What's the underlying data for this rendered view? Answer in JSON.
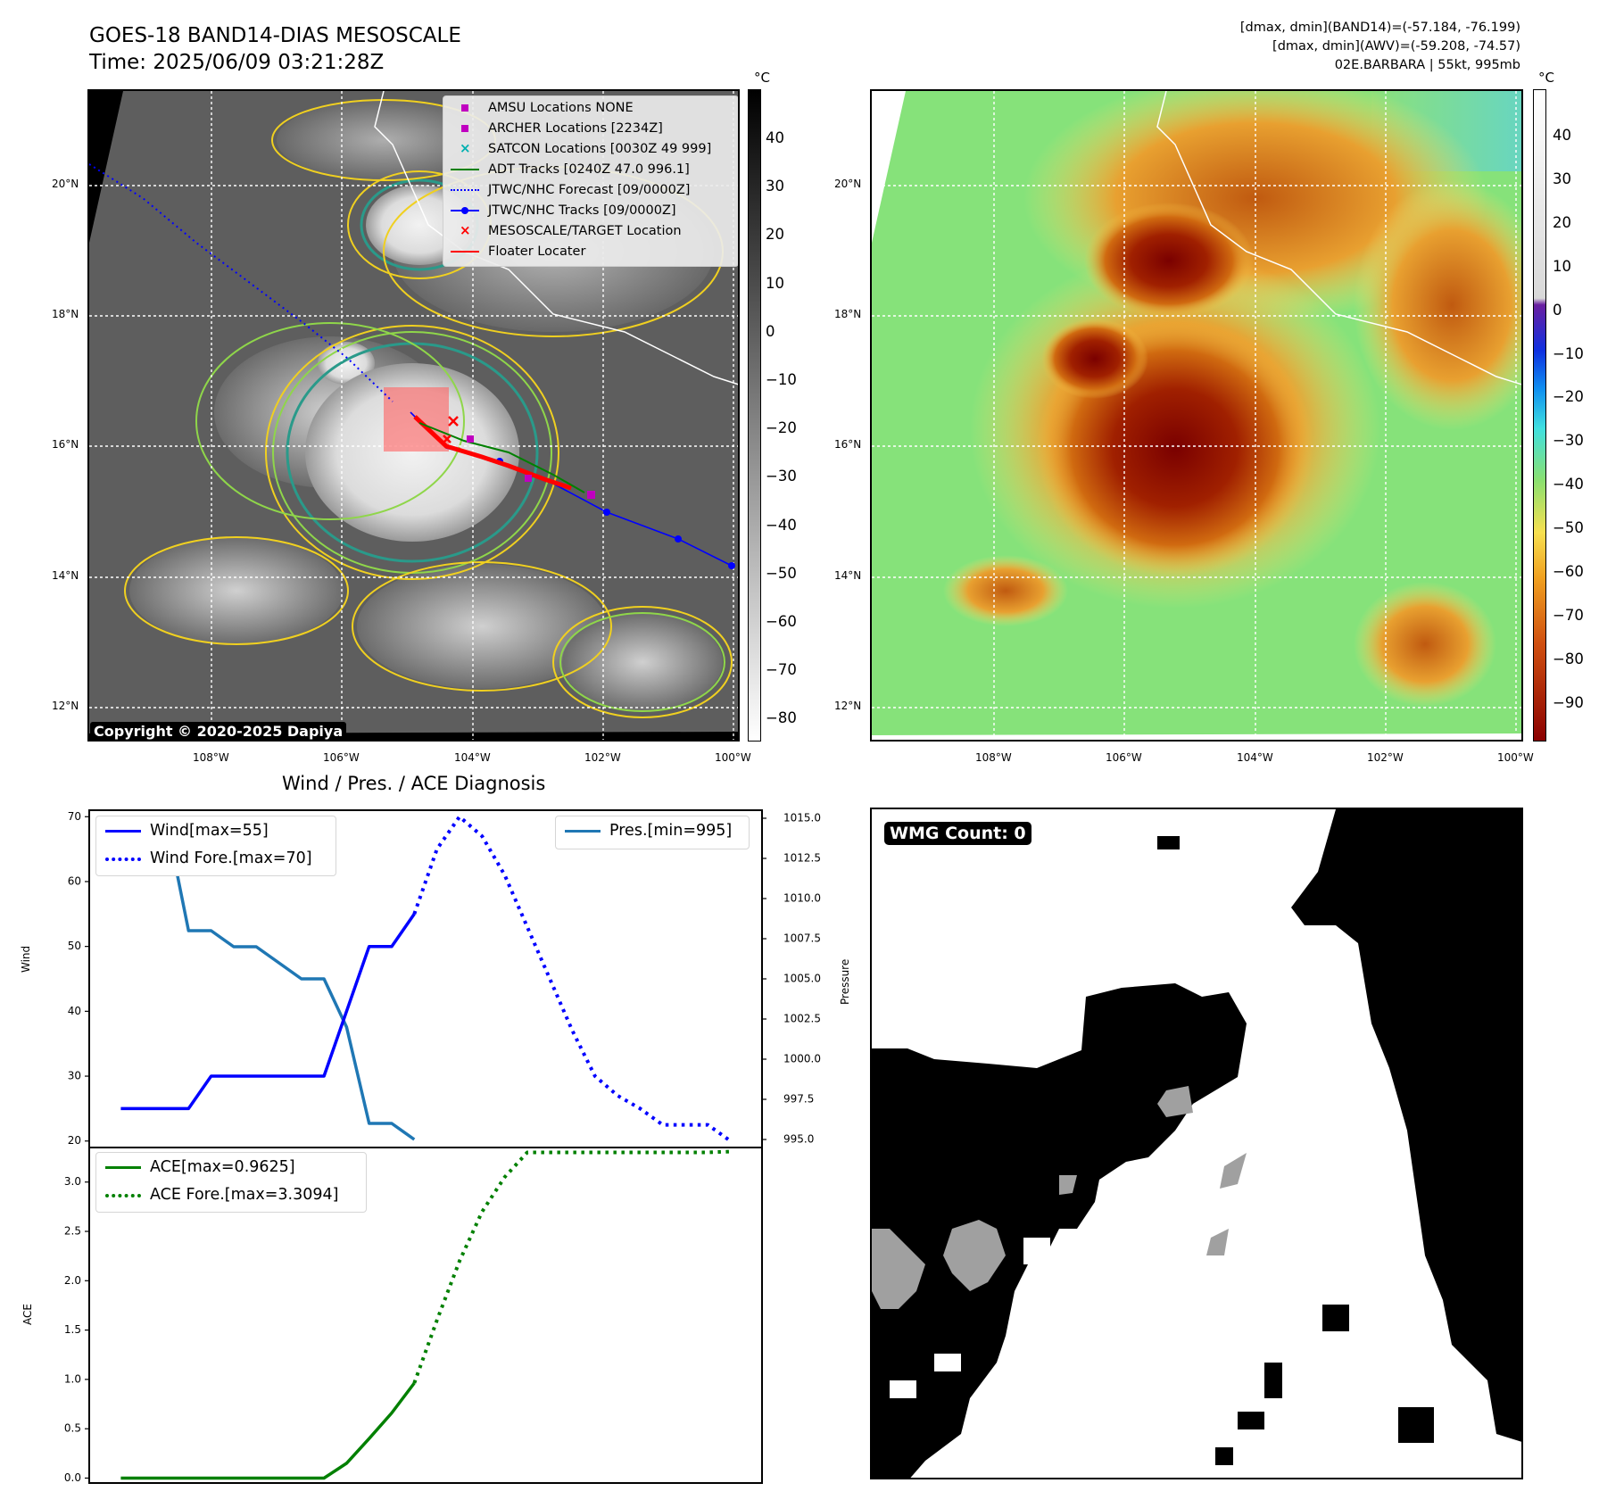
{
  "header": {
    "title_line1": "GOES-18 BAND14-DIAS MESOSCALE",
    "title_line2": "Time: 2025/06/09 03:21:28Z",
    "info_line1": "[dmax, dmin](BAND14)=(-57.184, -76.199)",
    "info_line2": "[dmax, dmin](AWV)=(-59.208, -74.57)",
    "info_line3": "02E.BARBARA | 55kt, 995mb"
  },
  "map_left": {
    "colorbar_unit": "°C",
    "colorbar_ticks": [
      "40",
      "30",
      "20",
      "10",
      "0",
      "−10",
      "−20",
      "−30",
      "−40",
      "−50",
      "−60",
      "−70",
      "−80"
    ],
    "lat_labels": [
      "20°N",
      "18°N",
      "16°N",
      "14°N",
      "12°N"
    ],
    "lon_labels": [
      "108°W",
      "106°W",
      "104°W",
      "102°W",
      "100°W"
    ],
    "copyright": "Copyright © 2020-2025 Dapiya",
    "legend": [
      {
        "label": "AMSU Locations NONE",
        "symbol": "square",
        "color": "#c000c0"
      },
      {
        "label": "ARCHER Locations [2234Z]",
        "symbol": "square",
        "color": "#c000c0"
      },
      {
        "label": "SATCON Locations [0030Z 49 999]",
        "symbol": "x",
        "color": "#00b0b0"
      },
      {
        "label": "ADT Tracks [0240Z 47.0 996.1]",
        "symbol": "line",
        "color": "#008000"
      },
      {
        "label": "JTWC/NHC Forecast [09/0000Z]",
        "symbol": "dotted",
        "color": "#0000ff"
      },
      {
        "label": "JTWC/NHC Tracks [09/0000Z]",
        "symbol": "line-dot",
        "color": "#0000ff"
      },
      {
        "label": "MESOSCALE/TARGET Location",
        "symbol": "x",
        "color": "#ff0000"
      },
      {
        "label": "Floater Locater",
        "symbol": "line",
        "color": "#ff0000"
      }
    ]
  },
  "map_right": {
    "colorbar_unit": "°C",
    "colorbar_ticks": [
      "40",
      "30",
      "20",
      "10",
      "0",
      "−10",
      "−20",
      "−30",
      "−40",
      "−50",
      "−60",
      "−70",
      "−80",
      "−90"
    ],
    "lat_labels": [
      "20°N",
      "18°N",
      "16°N",
      "14°N",
      "12°N"
    ],
    "lon_labels": [
      "108°W",
      "106°W",
      "104°W",
      "102°W",
      "100°W"
    ]
  },
  "wmg": {
    "label": "WMG Count: 0"
  },
  "chart_data": [
    {
      "type": "line",
      "title": "Wind / Pres. / ACE Diagnosis",
      "ylabel": "Wind",
      "y2label": "Pressure",
      "ylim": [
        19,
        71
      ],
      "y2lim": [
        994.5,
        1015.5
      ],
      "yticks": [
        "70",
        "60",
        "50",
        "40",
        "30",
        "20"
      ],
      "y2ticks": [
        "1015.0",
        "1012.5",
        "1010.0",
        "1007.5",
        "1005.0",
        "1002.5",
        "1000.0",
        "997.5",
        "995.0"
      ],
      "series": [
        {
          "name": "Wind[max=55]",
          "style": "solid",
          "color": "#0000ff",
          "x": [
            0,
            1,
            2,
            3,
            4,
            5,
            6,
            7,
            8,
            9,
            10,
            11,
            12,
            13
          ],
          "values": [
            25,
            25,
            25,
            25,
            30,
            30,
            30,
            30,
            30,
            30,
            40,
            50,
            50,
            55
          ]
        },
        {
          "name": "Wind Fore.[max=70]",
          "style": "dotted",
          "color": "#0000ff",
          "x": [
            13,
            14,
            15,
            16,
            17,
            18,
            19,
            20,
            21,
            22,
            23,
            24,
            25,
            26,
            27
          ],
          "values": [
            55,
            65,
            70,
            67,
            61,
            53,
            45,
            37,
            30,
            27,
            25,
            22.5,
            22.5,
            22.5,
            20
          ]
        },
        {
          "name": "Pres.[min=995]",
          "style": "solid",
          "color": "#1f77b4",
          "axis": "right",
          "x": [
            0,
            1,
            2,
            3,
            4,
            5,
            6,
            7,
            8,
            9,
            10,
            11,
            12,
            13
          ],
          "values": [
            1015,
            1015,
            1015,
            1008,
            1008,
            1007,
            1007,
            1006,
            1005,
            1005,
            1002,
            996,
            996,
            995
          ]
        }
      ]
    },
    {
      "type": "line",
      "ylabel": "ACE",
      "ylim": [
        -0.05,
        3.35
      ],
      "yticks": [
        "3.0",
        "2.5",
        "2.0",
        "1.5",
        "1.0",
        "0.5",
        "0.0"
      ],
      "series": [
        {
          "name": "ACE[max=0.9625]",
          "style": "solid",
          "color": "#008000",
          "x": [
            0,
            1,
            2,
            3,
            4,
            5,
            6,
            7,
            8,
            9,
            10,
            11,
            12,
            13
          ],
          "values": [
            0,
            0,
            0,
            0,
            0,
            0,
            0,
            0,
            0,
            0,
            0.15,
            0.4,
            0.66,
            0.9625
          ]
        },
        {
          "name": "ACE Fore.[max=3.3094]",
          "style": "dotted",
          "color": "#008000",
          "x": [
            13,
            14,
            15,
            16,
            17,
            18,
            19,
            20,
            21,
            22,
            23,
            24,
            25,
            26,
            27
          ],
          "values": [
            0.9625,
            1.6,
            2.2,
            2.7,
            3.05,
            3.3,
            3.3,
            3.3,
            3.3,
            3.3,
            3.3,
            3.3,
            3.3,
            3.3,
            3.3094
          ]
        }
      ]
    }
  ]
}
